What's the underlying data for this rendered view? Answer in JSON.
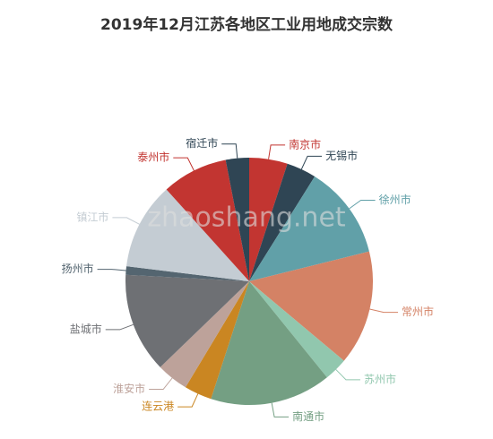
{
  "chart_data": {
    "type": "pie",
    "title": "2019年12月江苏各地区工业用地成交宗数",
    "categories": [
      "南京市",
      "无锡市",
      "徐州市",
      "常州市",
      "苏州市",
      "南通市",
      "连云港",
      "淮安市",
      "盐城市",
      "扬州市",
      "镇江市",
      "泰州市",
      "宿迁市"
    ],
    "values": [
      18,
      14,
      44,
      54,
      11,
      57,
      13,
      15,
      47,
      4,
      41,
      31,
      11
    ],
    "colors": [
      "#c23531",
      "#2f4554",
      "#61a0a8",
      "#d48265",
      "#91c7ae",
      "#749f83",
      "#ca8622",
      "#bda29a",
      "#6e7074",
      "#546570",
      "#c4ccd3",
      "#c23531",
      "#2f4554"
    ]
  },
  "watermark": "zhaoshang.net"
}
